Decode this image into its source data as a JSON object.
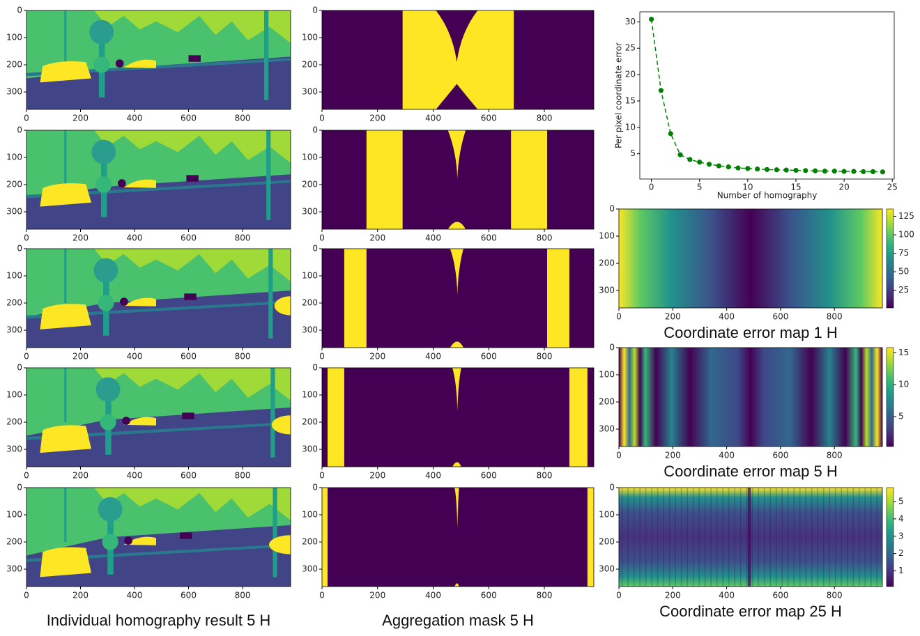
{
  "chart_data": [
    {
      "type": "segmentation",
      "xlim": [
        0,
        978
      ],
      "ylim": [
        0,
        364
      ],
      "y_inverted": true,
      "xticks": [
        0,
        200,
        400,
        600,
        800
      ],
      "yticks": [
        0,
        100,
        200,
        300
      ]
    },
    {
      "type": "segmentation",
      "xlim": [
        0,
        978
      ],
      "ylim": [
        0,
        364
      ],
      "y_inverted": true,
      "xticks": [
        0,
        200,
        400,
        600,
        800
      ],
      "yticks": [
        0,
        100,
        200,
        300
      ]
    },
    {
      "type": "segmentation",
      "xlim": [
        0,
        978
      ],
      "ylim": [
        0,
        364
      ],
      "y_inverted": true,
      "xticks": [
        0,
        200,
        400,
        600,
        800
      ],
      "yticks": [
        0,
        100,
        200,
        300
      ]
    },
    {
      "type": "segmentation",
      "xlim": [
        0,
        978
      ],
      "ylim": [
        0,
        364
      ],
      "y_inverted": true,
      "xticks": [
        0,
        200,
        400,
        600,
        800
      ],
      "yticks": [
        0,
        100,
        200,
        300
      ]
    },
    {
      "type": "segmentation",
      "xlim": [
        0,
        978
      ],
      "ylim": [
        0,
        364
      ],
      "y_inverted": true,
      "xticks": [
        0,
        200,
        400,
        600,
        800
      ],
      "yticks": [
        0,
        100,
        200,
        300
      ],
      "caption": "Individual homography result 5 H"
    },
    {
      "type": "mask",
      "xlim": [
        0,
        978
      ],
      "ylim": [
        0,
        364
      ],
      "y_inverted": true,
      "xticks": [
        0,
        200,
        400,
        600,
        800
      ],
      "yticks": [
        0,
        100,
        200,
        300
      ]
    },
    {
      "type": "mask",
      "xlim": [
        0,
        978
      ],
      "ylim": [
        0,
        364
      ],
      "y_inverted": true,
      "xticks": [
        0,
        200,
        400,
        600,
        800
      ],
      "yticks": [
        0,
        100,
        200,
        300
      ]
    },
    {
      "type": "mask",
      "xlim": [
        0,
        978
      ],
      "ylim": [
        0,
        364
      ],
      "y_inverted": true,
      "xticks": [
        0,
        200,
        400,
        600,
        800
      ],
      "yticks": [
        0,
        100,
        200,
        300
      ]
    },
    {
      "type": "mask",
      "xlim": [
        0,
        978
      ],
      "ylim": [
        0,
        364
      ],
      "y_inverted": true,
      "xticks": [
        0,
        200,
        400,
        600,
        800
      ],
      "yticks": [
        0,
        100,
        200,
        300
      ]
    },
    {
      "type": "mask",
      "xlim": [
        0,
        978
      ],
      "ylim": [
        0,
        364
      ],
      "y_inverted": true,
      "xticks": [
        0,
        200,
        400,
        600,
        800
      ],
      "yticks": [
        0,
        100,
        200,
        300
      ],
      "caption": "Aggregation mask 5 H"
    },
    {
      "type": "line",
      "xlabel": "Number of homography",
      "ylabel": "Per pixel coordinate error",
      "x": [
        0,
        1,
        2,
        3,
        4,
        5,
        6,
        7,
        8,
        9,
        10,
        11,
        12,
        13,
        14,
        15,
        16,
        17,
        18,
        19,
        20,
        21,
        22,
        23,
        24
      ],
      "series": [
        {
          "color": "#008000",
          "values": [
            30.5,
            17.0,
            8.8,
            4.8,
            3.9,
            3.4,
            3.0,
            2.7,
            2.5,
            2.3,
            2.2,
            2.1,
            2.0,
            1.95,
            1.9,
            1.85,
            1.8,
            1.75,
            1.7,
            1.7,
            1.65,
            1.65,
            1.6,
            1.6,
            1.55
          ]
        }
      ],
      "xlim": [
        -1.2,
        25.2
      ],
      "ylim": [
        0.2,
        31.9
      ],
      "xticks": [
        0,
        5,
        10,
        15,
        20,
        25
      ],
      "yticks": [
        5,
        10,
        15,
        20,
        25,
        30
      ]
    },
    {
      "type": "heatmap",
      "xlim": [
        0,
        978
      ],
      "ylim": [
        0,
        364
      ],
      "y_inverted": true,
      "xticks": [
        0,
        200,
        400,
        600,
        800
      ],
      "yticks": [
        0,
        100,
        200,
        300
      ],
      "clim": [
        1,
        135
      ],
      "cticks": [
        25,
        50,
        75,
        100,
        125
      ],
      "caption": "Coordinate error map 1 H"
    },
    {
      "type": "heatmap",
      "xlim": [
        0,
        978
      ],
      "ylim": [
        0,
        364
      ],
      "y_inverted": true,
      "xticks": [
        0,
        200,
        400,
        600,
        800
      ],
      "yticks": [
        0,
        100,
        200,
        300
      ],
      "clim": [
        0.3,
        15.8
      ],
      "cticks": [
        5,
        10,
        15
      ],
      "caption": "Coordinate error map 5 H"
    },
    {
      "type": "heatmap",
      "xlim": [
        0,
        978
      ],
      "ylim": [
        0,
        364
      ],
      "y_inverted": true,
      "xticks": [
        0,
        200,
        400,
        600,
        800
      ],
      "yticks": [
        0,
        100,
        200,
        300
      ],
      "clim": [
        0.1,
        5.8
      ],
      "cticks": [
        1,
        2,
        3,
        4,
        5
      ],
      "caption": "Coordinate error map 25 H"
    }
  ]
}
